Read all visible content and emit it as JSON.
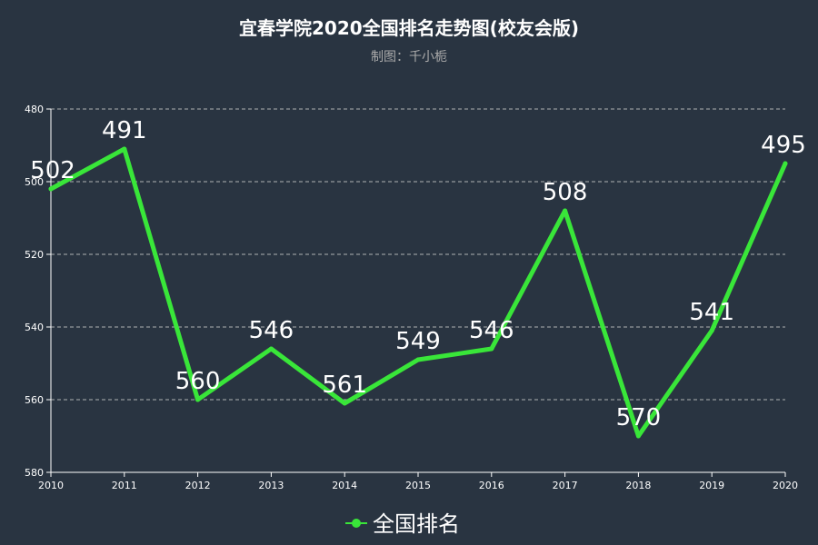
{
  "chart_data": {
    "type": "line",
    "title": "宜春学院2020全国排名走势图(校友会版)",
    "subtitle": "制图：千小栀",
    "categories": [
      "2010",
      "2011",
      "2012",
      "2013",
      "2014",
      "2015",
      "2016",
      "2017",
      "2018",
      "2019",
      "2020"
    ],
    "series": [
      {
        "name": "全国排名",
        "values": [
          502,
          491,
          560,
          546,
          561,
          549,
          546,
          508,
          570,
          541,
          495
        ],
        "color": "#39e639"
      }
    ],
    "y_ticks": [
      "480",
      "500",
      "520",
      "540",
      "560",
      "580"
    ],
    "ylim": [
      480,
      580
    ],
    "y_inverted": true,
    "grid": true,
    "legend_position": "bottom-center"
  }
}
